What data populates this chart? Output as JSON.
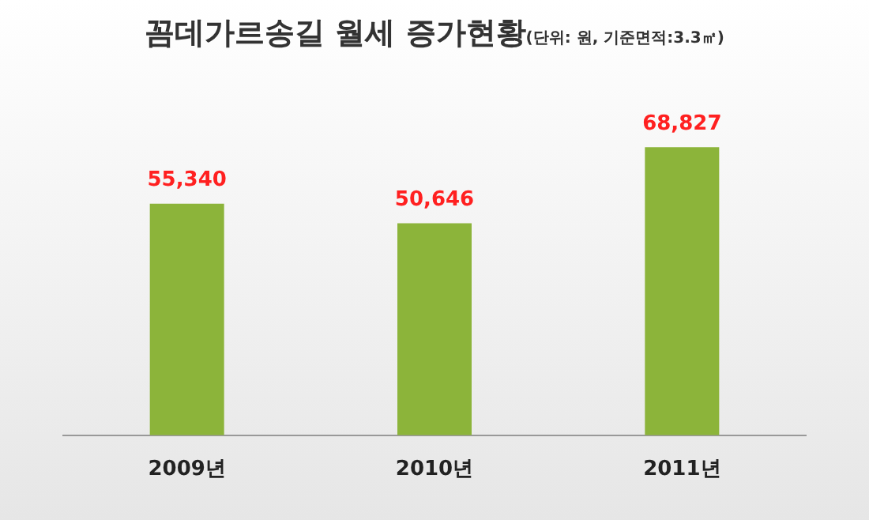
{
  "chart_data": {
    "type": "bar",
    "title": "꼼데가르송길 월세 증가현황",
    "subtitle": "(단위: 원, 기준면적:3.3㎡)",
    "categories": [
      "2009년",
      "2010년",
      "2011년"
    ],
    "values": [
      55340,
      50646,
      68827
    ],
    "color": "#8cb43a",
    "value_labels": [
      "55,340",
      "50,646",
      "68,827"
    ],
    "grid": false,
    "legend": false
  }
}
